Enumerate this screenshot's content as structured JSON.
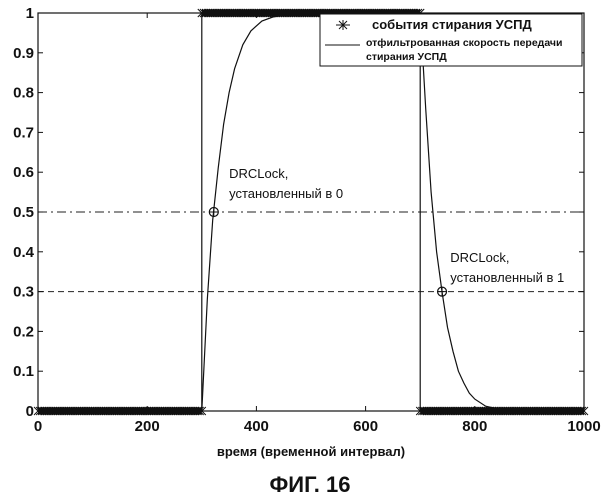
{
  "chart_data": {
    "type": "line",
    "xlabel": "время (временной интервал)",
    "caption": "ФИГ. 16",
    "xlim": [
      0,
      1000
    ],
    "ylim": [
      0,
      1
    ],
    "x_ticks": [
      0,
      200,
      400,
      600,
      800,
      1000
    ],
    "y_ticks": [
      0,
      0.1,
      0.2,
      0.3,
      0.4,
      0.5,
      0.6,
      0.7,
      0.8,
      0.9,
      1
    ],
    "y_tick_labels": [
      "0",
      "0.1",
      "0.2",
      "0.3",
      "0.4",
      "0.5",
      "0.6",
      "0.7",
      "0.8",
      "0.9",
      "1"
    ],
    "legend": {
      "position": "top-right",
      "entries": [
        {
          "name": "события стирания УСПД",
          "marker": "asterisk"
        },
        {
          "name": "отфильтрованная скорость передачи стирания УСПД",
          "line1": "отфильтрованная скорость передачи",
          "line2": "стирания УСПД",
          "marker": "line"
        }
      ]
    },
    "series": [
      {
        "name": "события стирания УСПД",
        "style": "markers",
        "segments": [
          {
            "x_start": 0,
            "x_end": 300,
            "y": 0
          },
          {
            "x_start": 300,
            "x_end": 700,
            "y": 1
          },
          {
            "x_start": 700,
            "x_end": 1000,
            "y": 0
          }
        ]
      },
      {
        "name": "отфильтрованная скорость передачи стирания УСПД",
        "style": "line",
        "x": [
          0,
          300,
          310,
          320,
          330,
          340,
          350,
          360,
          375,
          390,
          410,
          430,
          460,
          500,
          600,
          700,
          710,
          720,
          730,
          740,
          750,
          760,
          770,
          780,
          790,
          800,
          820,
          850,
          880,
          1000
        ],
        "y": [
          0,
          0,
          0.28,
          0.48,
          0.61,
          0.72,
          0.8,
          0.86,
          0.92,
          0.955,
          0.98,
          0.99,
          0.997,
          1,
          1,
          1,
          0.76,
          0.55,
          0.4,
          0.3,
          0.21,
          0.15,
          0.1,
          0.07,
          0.045,
          0.03,
          0.012,
          0.003,
          0,
          0
        ]
      }
    ],
    "reference_lines": [
      {
        "y": 0.5,
        "style": "dash-dot"
      },
      {
        "y": 0.3,
        "style": "dashed"
      }
    ],
    "markers": [
      {
        "x": 322,
        "y": 0.5
      },
      {
        "x": 740,
        "y": 0.3
      }
    ],
    "annotations": [
      {
        "line1": "DRCLock,",
        "line2": "установленный в 0",
        "x": 350,
        "y": 0.585
      },
      {
        "line1": "DRCLock,",
        "line2": "установленный в 1",
        "x": 755,
        "y": 0.375
      }
    ]
  }
}
